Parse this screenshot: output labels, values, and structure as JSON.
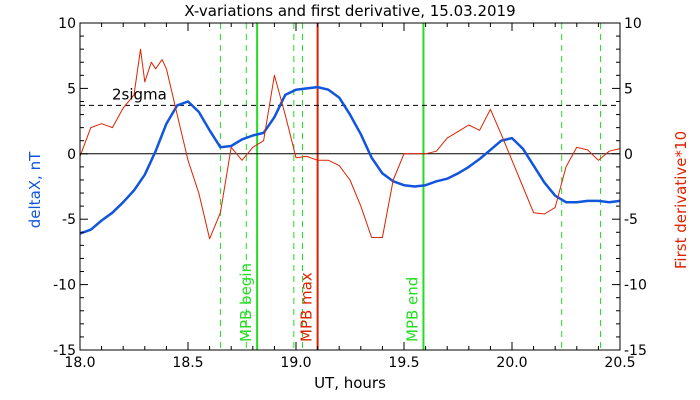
{
  "chart_data": {
    "type": "line",
    "title": "X-variations and first derivative, 15.03.2019",
    "xlabel": "UT, hours",
    "ylabel_left": "deltaX, nT",
    "ylabel_right": "First derivative*10",
    "xlim": [
      18.0,
      20.5
    ],
    "ylim": [
      -15,
      10
    ],
    "x_ticks": [
      "18.0",
      "18.5",
      "19.0",
      "19.5",
      "20.0",
      "20.5"
    ],
    "y_ticks": [
      "-15",
      "-10",
      "-5",
      "0",
      "5",
      "10"
    ],
    "threshold": {
      "label": "2sigma",
      "value": 3.7
    },
    "colors": {
      "deltaX": "#1155dd",
      "derivative": "#dd2200",
      "threshold": "#000000",
      "markers_green": "#22dd22",
      "marker_red": "#dd2200"
    },
    "series": [
      {
        "name": "deltaX, nT",
        "x": [
          18.0,
          18.05,
          18.1,
          18.15,
          18.2,
          18.25,
          18.3,
          18.35,
          18.4,
          18.45,
          18.5,
          18.55,
          18.6,
          18.65,
          18.7,
          18.75,
          18.8,
          18.85,
          18.9,
          18.95,
          19.0,
          19.05,
          19.1,
          19.15,
          19.2,
          19.25,
          19.3,
          19.35,
          19.4,
          19.45,
          19.5,
          19.55,
          19.6,
          19.65,
          19.7,
          19.75,
          19.8,
          19.85,
          19.9,
          19.95,
          20.0,
          20.05,
          20.1,
          20.15,
          20.2,
          20.25,
          20.3,
          20.35,
          20.4,
          20.45,
          20.5
        ],
        "values": [
          -6.1,
          -5.8,
          -5.1,
          -4.5,
          -3.7,
          -2.8,
          -1.6,
          0.2,
          2.3,
          3.7,
          4.0,
          3.2,
          1.8,
          0.5,
          0.6,
          1.1,
          1.4,
          1.6,
          2.8,
          4.5,
          4.9,
          5.0,
          5.1,
          4.9,
          4.3,
          3.0,
          1.5,
          -0.3,
          -1.5,
          -2.1,
          -2.4,
          -2.5,
          -2.4,
          -2.1,
          -1.9,
          -1.5,
          -1.0,
          -0.4,
          0.3,
          1.0,
          1.2,
          0.4,
          -0.9,
          -2.2,
          -3.2,
          -3.7,
          -3.7,
          -3.6,
          -3.6,
          -3.7,
          -3.6
        ]
      },
      {
        "name": "First derivative*10",
        "x": [
          18.0,
          18.05,
          18.1,
          18.15,
          18.2,
          18.25,
          18.28,
          18.3,
          18.33,
          18.35,
          18.38,
          18.4,
          18.45,
          18.5,
          18.55,
          18.6,
          18.65,
          18.7,
          18.75,
          18.8,
          18.85,
          18.9,
          18.95,
          19.0,
          19.05,
          19.1,
          19.15,
          19.2,
          19.25,
          19.3,
          19.35,
          19.4,
          19.45,
          19.5,
          19.55,
          19.6,
          19.65,
          19.7,
          19.75,
          19.8,
          19.85,
          19.9,
          19.95,
          20.0,
          20.05,
          20.1,
          20.15,
          20.2,
          20.25,
          20.3,
          20.35,
          20.4,
          20.45,
          20.5
        ],
        "values": [
          -0.2,
          2.0,
          2.3,
          2.0,
          3.5,
          4.5,
          8.0,
          5.5,
          7.0,
          6.5,
          7.2,
          6.5,
          3.0,
          -0.5,
          -3.0,
          -6.5,
          -4.5,
          0.5,
          -0.5,
          0.5,
          1.0,
          6.0,
          3.0,
          -0.3,
          -0.2,
          -0.5,
          -0.5,
          -0.9,
          -2.0,
          -4.0,
          -6.4,
          -6.4,
          -2.0,
          0.0,
          0.0,
          0.0,
          0.2,
          1.2,
          1.7,
          2.2,
          1.8,
          3.4,
          1.5,
          -0.5,
          -2.5,
          -4.5,
          -4.6,
          -4.1,
          -1.0,
          0.5,
          0.3,
          -0.5,
          0.2,
          0.4
        ]
      }
    ],
    "markers": [
      {
        "x": 18.65,
        "style": "dashed",
        "color_key": "markers_green",
        "label": ""
      },
      {
        "x": 18.77,
        "style": "dashed",
        "color_key": "markers_green",
        "label": ""
      },
      {
        "x": 18.82,
        "style": "solid",
        "color_key": "markers_green",
        "label": "MPB begin"
      },
      {
        "x": 18.99,
        "style": "dashed",
        "color_key": "markers_green",
        "label": ""
      },
      {
        "x": 19.03,
        "style": "dashed",
        "color_key": "markers_green",
        "label": ""
      },
      {
        "x": 19.1,
        "style": "solid",
        "color_key": "marker_red",
        "label": "MPB max"
      },
      {
        "x": 19.59,
        "style": "solid",
        "color_key": "markers_green",
        "label": "MPB end"
      },
      {
        "x": 20.23,
        "style": "dashed",
        "color_key": "markers_green",
        "label": ""
      },
      {
        "x": 20.41,
        "style": "dashed",
        "color_key": "markers_green",
        "label": ""
      }
    ]
  }
}
